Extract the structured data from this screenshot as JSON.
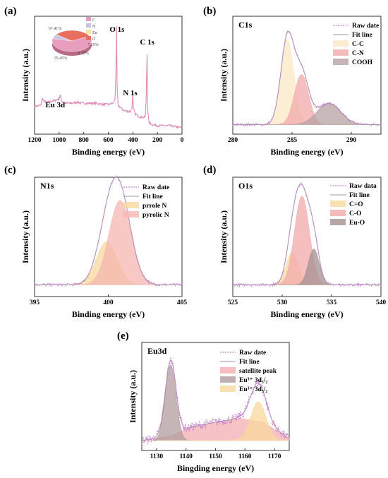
{
  "figure": {
    "colors": {
      "raw": "#c67bd6",
      "fit": "#9a9a9a",
      "survey": "#e089b6",
      "cc": "#fbe8c4",
      "cn": "#f2a9ab",
      "cooh": "#b7a2a4",
      "prrole": "#f8d89e",
      "pyrolic": "#f6b6b0",
      "co_double": "#f8d89e",
      "co_single": "#f2a9ab",
      "euo": "#a49090",
      "satellite": "#f3aeb1",
      "eu52": "#b19c9e",
      "eu32": "#f8d89e",
      "pie_c": "#e89fbf",
      "pie_n": "#c9c4e6",
      "pie_eu": "#f6e3a0",
      "pie_o": "#e86f5e"
    }
  },
  "chart_data": [
    {
      "panel": "(a)",
      "type": "line",
      "xlabel": "Binding energy (eV)",
      "ylabel": "Intensity (a.u.)",
      "xlim": [
        1200,
        0
      ],
      "x_reversed": true,
      "xticks": [
        1200,
        1000,
        800,
        600,
        400,
        200,
        0
      ],
      "peak_labels": [
        {
          "text": "O 1s",
          "x": 532
        },
        {
          "text": "N 1s",
          "x": 400
        },
        {
          "text": "C 1s",
          "x": 285
        },
        {
          "text": "Eu 3d",
          "x": 1135
        }
      ],
      "survey_points": [
        [
          1200,
          0.22
        ],
        [
          1150,
          0.23
        ],
        [
          1135,
          0.3
        ],
        [
          1125,
          0.27
        ],
        [
          1100,
          0.26
        ],
        [
          1050,
          0.27
        ],
        [
          1000,
          0.29
        ],
        [
          990,
          0.33
        ],
        [
          980,
          0.27
        ],
        [
          950,
          0.25
        ],
        [
          900,
          0.25
        ],
        [
          850,
          0.26
        ],
        [
          800,
          0.25
        ],
        [
          750,
          0.25
        ],
        [
          700,
          0.25
        ],
        [
          650,
          0.24
        ],
        [
          600,
          0.24
        ],
        [
          560,
          0.25
        ],
        [
          545,
          0.29
        ],
        [
          536,
          0.6
        ],
        [
          532,
          0.96
        ],
        [
          528,
          0.42
        ],
        [
          520,
          0.23
        ],
        [
          470,
          0.18
        ],
        [
          420,
          0.17
        ],
        [
          405,
          0.22
        ],
        [
          401,
          0.37
        ],
        [
          397,
          0.21
        ],
        [
          380,
          0.15
        ],
        [
          340,
          0.12
        ],
        [
          300,
          0.12
        ],
        [
          290,
          0.3
        ],
        [
          285,
          0.83
        ],
        [
          280,
          0.22
        ],
        [
          270,
          0.07
        ],
        [
          240,
          0.05
        ],
        [
          200,
          0.04
        ],
        [
          150,
          0.04
        ],
        [
          100,
          0.04
        ],
        [
          50,
          0.03
        ],
        [
          0,
          0.02
        ]
      ],
      "inset_pie": {
        "slices": [
          {
            "name": "C",
            "value": 67.41,
            "label": "67.41%"
          },
          {
            "name": "N",
            "value": 7.15,
            "label": "7.15%"
          },
          {
            "name": "Eu",
            "value": 0.29,
            "label": "0.29%"
          },
          {
            "name": "O",
            "value": 35.45,
            "label": "35.45%"
          }
        ],
        "legend": [
          "C",
          "N",
          "Eu",
          "O"
        ]
      }
    },
    {
      "panel": "(b)",
      "type": "area",
      "title": "C1s",
      "xlabel": "Binding energy (eV)",
      "ylabel": "Intensity (a.u.)",
      "xlim": [
        280,
        292.5
      ],
      "xticks": [
        280,
        285,
        290
      ],
      "baseline": 0.05,
      "components": [
        {
          "name": "C-C",
          "center": 284.6,
          "amp": 0.8,
          "sigma": 0.55,
          "color": "cc"
        },
        {
          "name": "C-N",
          "center": 285.8,
          "amp": 0.47,
          "sigma": 0.6,
          "color": "cn"
        },
        {
          "name": "COOH",
          "center": 288.1,
          "amp": 0.2,
          "sigma": 1.0,
          "color": "cooh"
        }
      ],
      "legend": [
        "Raw date",
        "Fit line",
        "C-C",
        "C-N",
        "COOH"
      ]
    },
    {
      "panel": "(c)",
      "type": "area",
      "title": "N1s",
      "xlabel": "Binding energy (eV)",
      "ylabel": "Intensity (a.u.)",
      "xlim": [
        395,
        405
      ],
      "xticks": [
        395,
        400,
        405
      ],
      "baseline": 0.07,
      "components": [
        {
          "name": "prrole N",
          "center": 399.9,
          "amp": 0.4,
          "sigma": 0.7,
          "color": "prrole"
        },
        {
          "name": "pyrolic N",
          "center": 400.8,
          "amp": 0.78,
          "sigma": 0.75,
          "color": "pyrolic"
        }
      ],
      "legend": [
        "Raw date",
        "Fit line",
        "prrole N",
        "pyrolic N"
      ]
    },
    {
      "panel": "(d)",
      "type": "area",
      "title": "O1s",
      "xlabel": "Binding energy (eV)",
      "ylabel": "Intensity (a.u.)",
      "xlim": [
        525,
        540
      ],
      "xticks": [
        525,
        530,
        535,
        540
      ],
      "baseline": 0.07,
      "components": [
        {
          "name": "C=O",
          "center": 531.0,
          "amp": 0.3,
          "sigma": 0.6,
          "color": "co_double"
        },
        {
          "name": "C-O",
          "center": 532.0,
          "amp": 0.82,
          "sigma": 0.75,
          "color": "co_single"
        },
        {
          "name": "Eu-O",
          "center": 533.2,
          "amp": 0.33,
          "sigma": 0.55,
          "color": "euo"
        }
      ],
      "legend": [
        "Raw data",
        "Fit line",
        "C=O",
        "C-O",
        "Eu-O"
      ]
    },
    {
      "panel": "(e)",
      "type": "area",
      "title": "Eu3d",
      "xlabel": "Bingding energy (eV)",
      "ylabel": "Intensity (a.u.)",
      "xlim": [
        1125,
        1175
      ],
      "xticks": [
        1130,
        1140,
        1150,
        1160,
        1170
      ],
      "baseline": 0.06,
      "components": [
        {
          "name": "satellite peak",
          "kind": "broad",
          "points": [
            [
              1125,
              0.0
            ],
            [
              1135,
              0.05
            ],
            [
              1142,
              0.14
            ],
            [
              1150,
              0.19
            ],
            [
              1158,
              0.23
            ],
            [
              1166,
              0.19
            ],
            [
              1172,
              0.08
            ],
            [
              1175,
              0.02
            ]
          ],
          "color": "satellite"
        },
        {
          "name": "Eu³⁺ 3d₅/₂",
          "center": 1134.8,
          "amp": 0.78,
          "sigma": 1.8,
          "color": "eu52"
        },
        {
          "name": "Eu³⁺ 3d₃/₂",
          "center": 1164.5,
          "amp": 0.4,
          "sigma": 2.6,
          "color": "eu32"
        }
      ],
      "legend": [
        "Raw date",
        "Fit line",
        "satellite peak",
        "Eu³⁺ 3d₅/₂",
        "Eu³⁺ 3d₃/₂"
      ]
    }
  ]
}
